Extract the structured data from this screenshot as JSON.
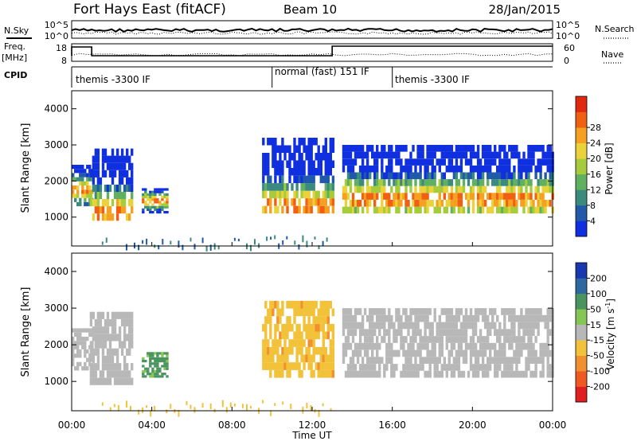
{
  "header": {
    "station": "Fort Hays East (fitACF)",
    "beam": "Beam 10",
    "date": "28/Jan/2015"
  },
  "top_panels": {
    "nsky_label": "N.Sky",
    "nsky_ticks": [
      "10^5",
      "10^0"
    ],
    "nsearch_label": "N.Search",
    "nsearch_ticks": [
      "10^5",
      "10^0"
    ],
    "freq_label": "Freq.",
    "freq_unit": "[MHz]",
    "freq_ticks": [
      "18",
      "8"
    ],
    "nave_label": "Nave",
    "nave_ticks": [
      "60",
      "0"
    ],
    "cpid_label": "CPID",
    "cpid_segments": [
      {
        "label": "themis -3300 IF",
        "start_hour": 0,
        "end_hour": 10
      },
      {
        "label": "normal (fast) 151 IF",
        "start_hour": 10,
        "end_hour": 16
      },
      {
        "label": "themis -3300 IF",
        "start_hour": 16,
        "end_hour": 24
      }
    ]
  },
  "chart_data": [
    {
      "type": "heatmap",
      "name": "power",
      "ylabel": "Slant Range [km]",
      "ylim": [
        200,
        4500
      ],
      "yticks": [
        "1000",
        "2000",
        "3000",
        "4000"
      ],
      "colorbar_label": "Power [dB]",
      "colorbar_ticks": [
        "4",
        "8",
        "12",
        "16",
        "20",
        "24",
        "28"
      ],
      "colorbar_colors": [
        "#1030e0",
        "#205aa8",
        "#3a8a80",
        "#60b060",
        "#a6cc3c",
        "#ead23a",
        "#f5a020",
        "#f06010",
        "#e02a10"
      ],
      "echo_regions": [
        {
          "start_hour": 0.0,
          "end_hour": 1.0,
          "range_low": 1300,
          "range_high": 2450,
          "peak_range": 1750
        },
        {
          "start_hour": 0.9,
          "end_hour": 3.0,
          "range_low": 900,
          "range_high": 2900,
          "peak_range": 1150
        },
        {
          "start_hour": 3.5,
          "end_hour": 4.8,
          "range_low": 1100,
          "range_high": 1800,
          "peak_range": 1450
        },
        {
          "start_hour": 9.5,
          "end_hour": 13.0,
          "range_low": 1100,
          "range_high": 3200,
          "peak_range": 1300
        },
        {
          "start_hour": 13.5,
          "end_hour": 24.0,
          "range_low": 1100,
          "range_high": 3000,
          "peak_range": 1500
        }
      ]
    },
    {
      "type": "heatmap",
      "name": "velocity",
      "ylabel": "Slant Range [km]",
      "ylim": [
        200,
        4500
      ],
      "yticks": [
        "1000",
        "2000",
        "3000",
        "4000"
      ],
      "colorbar_label": "Velocity [m s",
      "colorbar_label_sup": "-1",
      "colorbar_label_end": "]",
      "colorbar_ticks": [
        "200",
        "100",
        "50",
        "15",
        "-15",
        "-50",
        "-100",
        "-200"
      ],
      "colorbar_colors": [
        "#1838b0",
        "#2e68a0",
        "#4a9460",
        "#86c654",
        "#b8b8b8",
        "#f2c23a",
        "#f29030",
        "#f05a20",
        "#e02020"
      ],
      "echo_regions": [
        {
          "start_hour": 0.0,
          "end_hour": 1.0,
          "range_low": 1300,
          "range_high": 2450,
          "velocity": 0
        },
        {
          "start_hour": 0.9,
          "end_hour": 3.0,
          "range_low": 900,
          "range_high": 2900,
          "velocity": 0
        },
        {
          "start_hour": 3.5,
          "end_hour": 4.8,
          "range_low": 1100,
          "range_high": 1800,
          "velocity": 60
        },
        {
          "start_hour": 9.5,
          "end_hour": 13.0,
          "range_low": 1100,
          "range_high": 3200,
          "velocity": -40
        },
        {
          "start_hour": 13.5,
          "end_hour": 24.0,
          "range_low": 1100,
          "range_high": 3000,
          "velocity": 0
        }
      ]
    }
  ],
  "xaxis": {
    "label": "Time UT",
    "ticks": [
      "00:00",
      "04:00",
      "08:00",
      "12:00",
      "16:00",
      "20:00",
      "00:00"
    ],
    "range_hours": [
      0,
      24
    ]
  }
}
